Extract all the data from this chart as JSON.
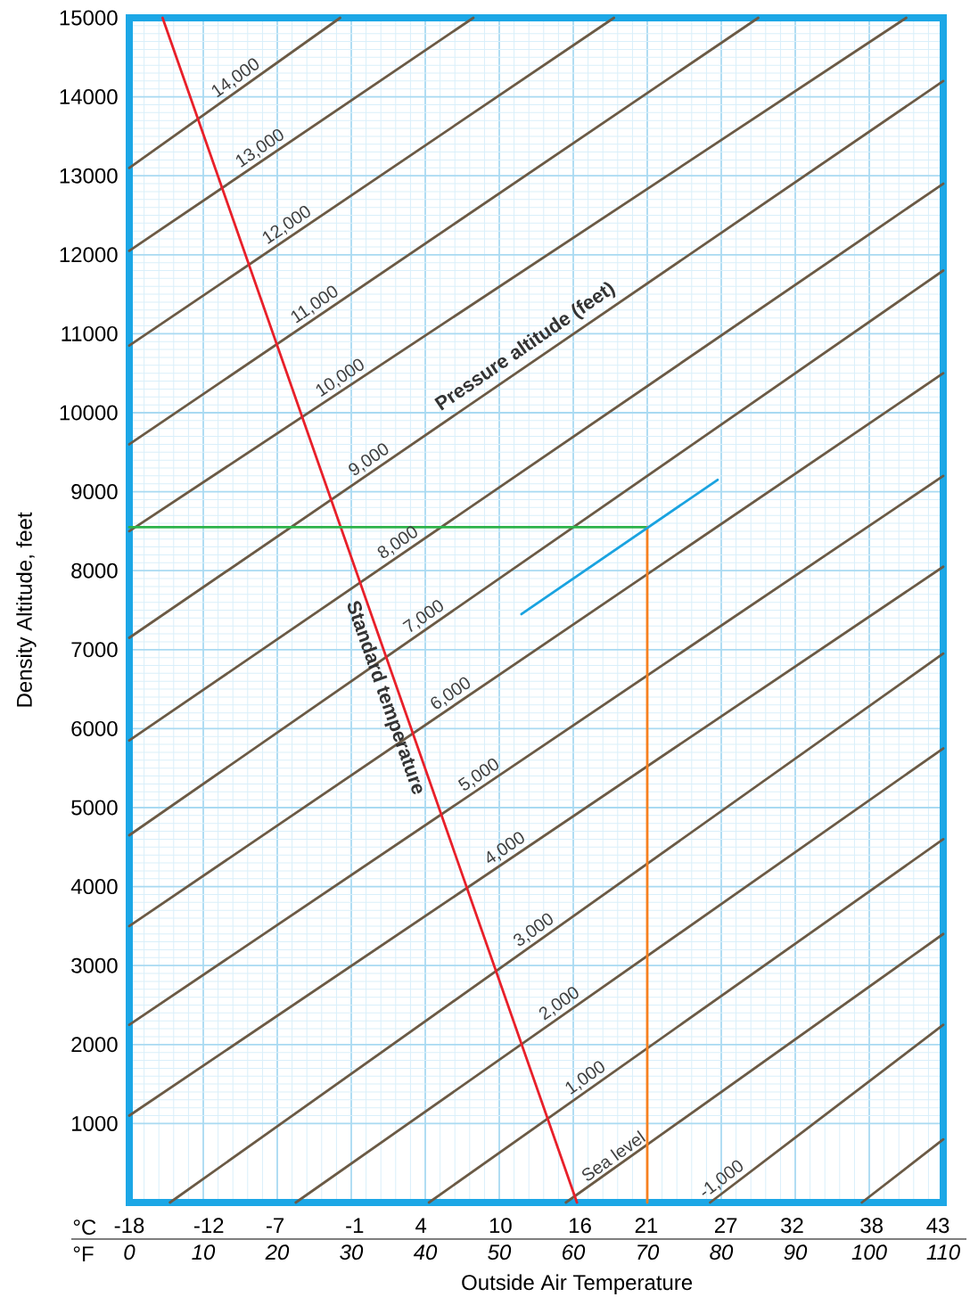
{
  "chart_data": {
    "type": "line",
    "xlabel": "Outside Air Temperature",
    "ylabel": "Density Altitude, feet",
    "annotations": [
      "Pressure altitude (feet)",
      "°C",
      "°F"
    ],
    "xlim": [
      0,
      110
    ],
    "ylim": [
      0,
      15000
    ],
    "xticks": [
      0,
      10,
      20,
      30,
      40,
      50,
      60,
      70,
      80,
      90,
      100,
      110
    ],
    "x2lim": [
      -18,
      43.4
    ],
    "x2ticks": [
      -18,
      -12,
      -7,
      -1,
      4,
      10,
      16,
      21,
      27,
      32,
      38,
      43
    ],
    "yticks": [
      1000,
      2000,
      3000,
      4000,
      5000,
      6000,
      7000,
      8000,
      9000,
      10000,
      11000,
      12000,
      13000,
      14000,
      15000
    ],
    "grid": true,
    "series": [
      {
        "color": "#6b5a45",
        "x": [
          99,
          110
        ],
        "values": [
          0,
          800
        ]
      },
      {
        "name": "-1,000",
        "color": "#6b5a45",
        "x": [
          78.5,
          110
        ],
        "values": [
          0,
          2250
        ]
      },
      {
        "name": "Sea level",
        "color": "#6b5a45",
        "x": [
          59,
          110
        ],
        "values": [
          0,
          3400
        ]
      },
      {
        "name": "1,000",
        "color": "#6b5a45",
        "x": [
          40.5,
          110
        ],
        "values": [
          0,
          4600
        ]
      },
      {
        "name": "2,000",
        "color": "#6b5a45",
        "x": [
          22.5,
          110
        ],
        "values": [
          0,
          5750
        ]
      },
      {
        "name": "3,000",
        "color": "#6b5a45",
        "x": [
          5.5,
          110
        ],
        "values": [
          0,
          6950
        ]
      },
      {
        "name": "4,000",
        "color": "#6b5a45",
        "x": [
          0,
          110
        ],
        "values": [
          1100,
          8050
        ]
      },
      {
        "name": "5,000",
        "color": "#6b5a45",
        "x": [
          0,
          110
        ],
        "values": [
          2250,
          9200
        ]
      },
      {
        "name": "6,000",
        "color": "#6b5a45",
        "x": [
          0,
          110
        ],
        "values": [
          3500,
          10500
        ]
      },
      {
        "name": "7,000",
        "color": "#6b5a45",
        "x": [
          0,
          110
        ],
        "values": [
          4650,
          11800
        ]
      },
      {
        "name": "8,000",
        "color": "#6b5a45",
        "x": [
          0,
          110
        ],
        "values": [
          5850,
          12900
        ]
      },
      {
        "name": "9,000",
        "color": "#6b5a45",
        "x": [
          0,
          110
        ],
        "values": [
          7150,
          14200
        ]
      },
      {
        "name": "10,000",
        "color": "#6b5a45",
        "x": [
          0,
          105
        ],
        "values": [
          8500,
          15000
        ]
      },
      {
        "name": "11,000",
        "color": "#6b5a45",
        "x": [
          0,
          85
        ],
        "values": [
          9600,
          15000
        ]
      },
      {
        "name": "12,000",
        "color": "#6b5a45",
        "x": [
          0,
          65.5
        ],
        "values": [
          10850,
          15000
        ]
      },
      {
        "name": "13,000",
        "color": "#6b5a45",
        "x": [
          0,
          46.5
        ],
        "values": [
          12050,
          15000
        ]
      },
      {
        "name": "14,000",
        "color": "#6b5a45",
        "x": [
          0,
          28.5
        ],
        "values": [
          13100,
          15000
        ]
      },
      {
        "name": "Standard temperature",
        "color": "#e8202a",
        "x": [
          4.5,
          60.5
        ],
        "values": [
          15000,
          0
        ]
      },
      {
        "color": "#2db34a",
        "x": [
          0,
          70
        ],
        "values": [
          8550,
          8550
        ]
      },
      {
        "color": "#f7801f",
        "x": [
          70,
          70
        ],
        "values": [
          0,
          8550
        ]
      },
      {
        "color": "#1aa3e0",
        "x": [
          53,
          79.5
        ],
        "values": [
          7450,
          9150
        ]
      }
    ]
  }
}
